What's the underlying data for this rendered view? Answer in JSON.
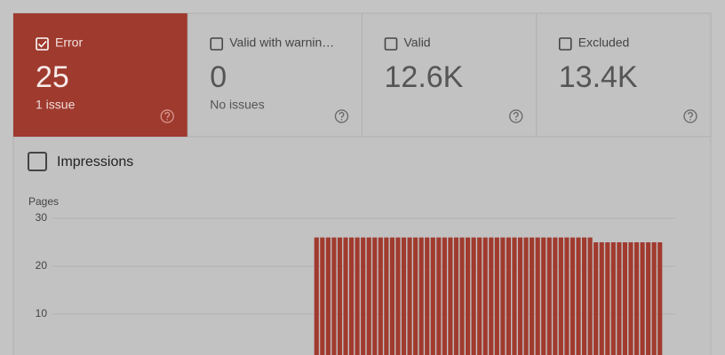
{
  "tiles": [
    {
      "label": "Error",
      "value": "25",
      "subtitle": "1 issue",
      "checked": true
    },
    {
      "label": "Valid with warnin…",
      "value": "0",
      "subtitle": "No issues",
      "checked": false
    },
    {
      "label": "Valid",
      "value": "12.6K",
      "checked": false
    },
    {
      "label": "Excluded",
      "value": "13.4K",
      "checked": false
    }
  ],
  "toggle": {
    "label": "Impressions"
  },
  "chart_data": {
    "type": "bar",
    "y_label": "Pages",
    "color": "#a13a2e",
    "values": [
      26,
      26,
      26,
      26,
      26,
      26,
      26,
      26,
      26,
      26,
      26,
      26,
      26,
      26,
      26,
      26,
      26,
      26,
      26,
      26,
      26,
      26,
      26,
      26,
      26,
      26,
      26,
      26,
      26,
      26,
      26,
      26,
      26,
      26,
      26,
      26,
      26,
      26,
      26,
      26,
      26,
      26,
      26,
      26,
      26,
      26,
      26,
      26,
      25,
      25,
      25,
      25,
      25,
      25,
      25,
      25,
      25,
      25,
      25,
      25
    ],
    "ylim": [
      0,
      30
    ],
    "yticks": [
      10,
      20,
      30
    ],
    "grid": true
  }
}
